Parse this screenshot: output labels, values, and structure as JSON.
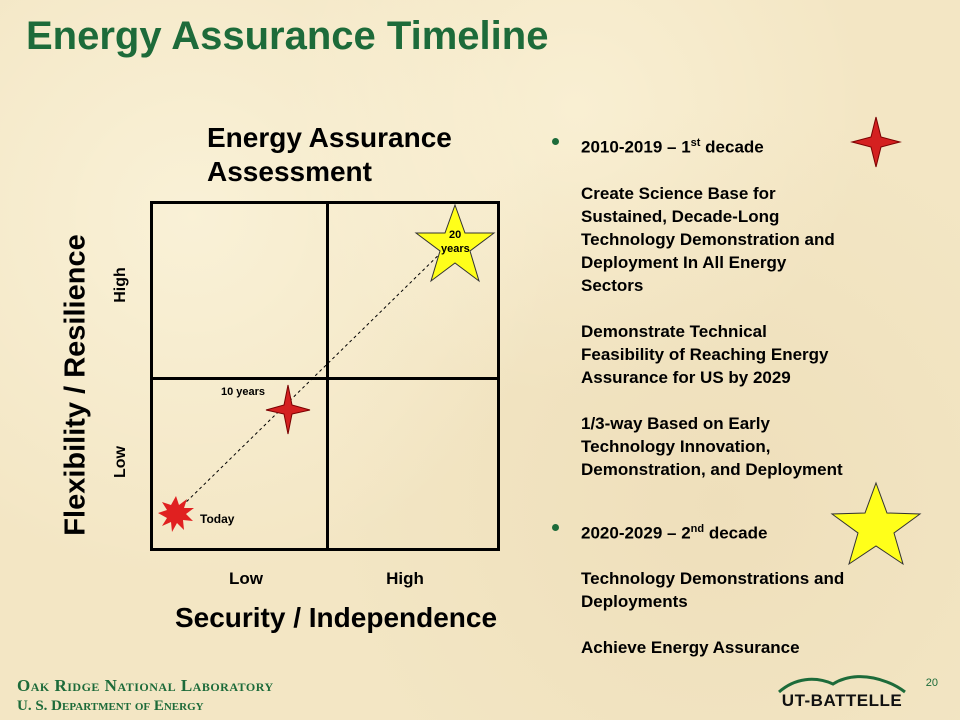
{
  "title": "Energy Assurance Timeline",
  "assessment": {
    "title": "Energy Assurance Assessment",
    "y_axis_title": "Flexibility / Resilience",
    "x_axis_title": "Security / Independence",
    "y_ticks": [
      "High",
      "Low"
    ],
    "x_ticks": [
      "Low",
      "High"
    ],
    "points": [
      {
        "label": "Today",
        "marker": "red-burst-icon"
      },
      {
        "label": "10 years",
        "marker": "red-star-icon"
      },
      {
        "label_line1": "20",
        "label_line2": "years",
        "marker": "yellow-star-icon"
      }
    ]
  },
  "bullets": [
    {
      "heading": "2010-2019 – 1",
      "heading_sup": "st",
      "heading_suffix": " decade",
      "icon": "red-star-icon",
      "lines": [
        "Create Science Base for",
        "Sustained, Decade-Long",
        "Technology Demonstration and",
        "Deployment In All Energy",
        "Sectors",
        "Demonstrate Technical",
        "Feasibility of Reaching Energy",
        "Assurance for US by 2029",
        "1/3-way Based on Early",
        "Technology Innovation,",
        "Demonstration, and Deployment"
      ]
    },
    {
      "heading": "2020-2029 – 2",
      "heading_sup": "nd",
      "heading_suffix": " decade",
      "icon": "yellow-star-icon",
      "lines": [
        "Technology Demonstrations and",
        "Deployments",
        "Achieve Energy Assurance"
      ]
    }
  ],
  "footer": {
    "line1": "Oak Ridge National Laboratory",
    "line2": "U. S. Department of Energy",
    "page_number": "20",
    "logo_text": "UT-BATTELLE"
  },
  "colors": {
    "title_green": "#1d6b3a",
    "star_red": "#d42020",
    "star_yellow": "#ffff1a"
  }
}
